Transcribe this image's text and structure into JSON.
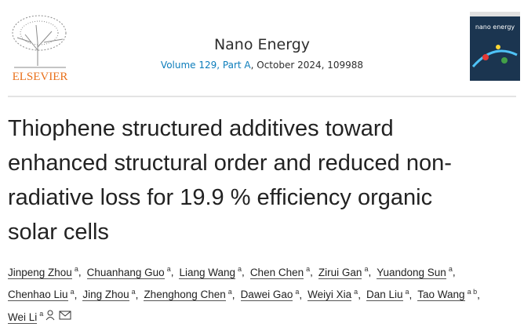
{
  "header": {
    "publisher": "ELSEVIER",
    "journal": "Nano Energy",
    "volume": "Volume 129, Part A",
    "date_and_id": ", October 2024, 109988",
    "cover_title": "nano energy"
  },
  "article": {
    "title_lines": [
      "Thiophene structured additives toward",
      "enhanced structural order and reduced non-",
      "radiative loss for 19.9 % efficiency organic",
      "solar cells"
    ],
    "author_separator": ",",
    "authors": [
      {
        "name": "Jinpeng Zhou",
        "aff": "a"
      },
      {
        "name": "Chuanhang Guo",
        "aff": "a"
      },
      {
        "name": "Liang Wang",
        "aff": "a"
      },
      {
        "name": "Chen Chen",
        "aff": "a"
      },
      {
        "name": "Zirui Gan",
        "aff": "a"
      },
      {
        "name": "Yuandong Sun",
        "aff": "a"
      },
      {
        "name": "Chenhao Liu",
        "aff": "a"
      },
      {
        "name": "Jing Zhou",
        "aff": "a"
      },
      {
        "name": "Zhenghong Chen",
        "aff": "a"
      },
      {
        "name": "Dawei Gao",
        "aff": "a"
      },
      {
        "name": "Weiyi Xia",
        "aff": "a"
      },
      {
        "name": "Dan Liu",
        "aff": "a"
      },
      {
        "name": "Tao Wang",
        "aff": "a b"
      },
      {
        "name": "Wei Li",
        "aff": "a"
      }
    ]
  }
}
